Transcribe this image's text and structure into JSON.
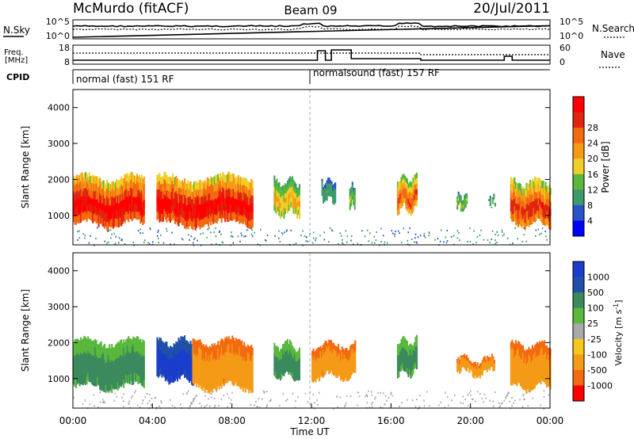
{
  "header": {
    "title": "McMurdo (fitACF)",
    "beam": "Beam 09",
    "date": "20/Jul/2011"
  },
  "colors": {
    "power_scale": [
      "#0000ff",
      "#2a52c9",
      "#3d9a6a",
      "#59b83c",
      "#f0d028",
      "#f59a17",
      "#f36a10",
      "#e02510",
      "#ff0000"
    ],
    "velocity_scale": [
      "#1a3dcc",
      "#2050a8",
      "#3b8a5e",
      "#59b83c",
      "#a8a8a8",
      "#f5c61c",
      "#f59a17",
      "#f36a10",
      "#ff0000"
    ],
    "noise_line": "#000000",
    "background": "#ffffff"
  },
  "chart_data": [
    {
      "type": "line",
      "panel": "noise",
      "left_label": "N.Sky",
      "right_label": "N.Search",
      "left_ticks": [
        "10^5",
        "10^0"
      ],
      "right_ticks": [
        "10^5",
        "10^0"
      ],
      "series": [
        {
          "name": "N.Sky",
          "style": "solid"
        },
        {
          "name": "N.Search",
          "style": "dotted"
        }
      ]
    },
    {
      "type": "line",
      "panel": "frequency",
      "left_label": "Freq. [MHz]",
      "right_label": "Nave",
      "left_ticks": [
        "18",
        "8"
      ],
      "right_ticks": [
        "60",
        "0"
      ],
      "series": [
        {
          "name": "Freq.",
          "style": "solid"
        },
        {
          "name": "Nave",
          "style": "dotted"
        }
      ]
    },
    {
      "type": "table",
      "panel": "cpid",
      "label": "CPID",
      "segments": [
        {
          "start": "00:00",
          "end": "12:00",
          "text": "normal (fast) 151 RF"
        },
        {
          "start": "12:00",
          "end": "00:00",
          "text": "normalsound (fast) 157 RF"
        }
      ]
    },
    {
      "type": "heatmap",
      "panel": "power",
      "ylabel": "Slant Range [km]",
      "ylim": [
        180,
        4500
      ],
      "yticks": [
        "1000",
        "2000",
        "3000",
        "4000"
      ],
      "colorbar_label": "Power [dB]",
      "colorbar_ticks": [
        "4",
        "8",
        "12",
        "16",
        "20",
        "24",
        "28"
      ],
      "echo_regions": [
        {
          "start_hr": 0.0,
          "end_hr": 3.6,
          "low_km": 700,
          "high_km": 2100,
          "peak_dB": 30
        },
        {
          "start_hr": 4.2,
          "end_hr": 9.0,
          "low_km": 700,
          "high_km": 2100,
          "peak_dB": 30
        },
        {
          "start_hr": 10.1,
          "end_hr": 11.4,
          "low_km": 1000,
          "high_km": 2000,
          "peak_dB": 18
        },
        {
          "start_hr": 12.5,
          "end_hr": 13.2,
          "low_km": 1400,
          "high_km": 2000,
          "peak_dB": 10
        },
        {
          "start_hr": 13.9,
          "end_hr": 14.2,
          "low_km": 1200,
          "high_km": 1900,
          "peak_dB": 14
        },
        {
          "start_hr": 16.3,
          "end_hr": 17.3,
          "low_km": 1100,
          "high_km": 2100,
          "peak_dB": 24
        },
        {
          "start_hr": 19.3,
          "end_hr": 19.8,
          "low_km": 1100,
          "high_km": 1600,
          "peak_dB": 14
        },
        {
          "start_hr": 20.9,
          "end_hr": 21.2,
          "low_km": 1200,
          "high_km": 1500,
          "peak_dB": 12
        },
        {
          "start_hr": 22.0,
          "end_hr": 24.0,
          "low_km": 700,
          "high_km": 2000,
          "peak_dB": 26
        }
      ]
    },
    {
      "type": "heatmap",
      "panel": "velocity",
      "ylabel": "Slant Range [km]",
      "xlabel": "Time UT",
      "ylim": [
        180,
        4500
      ],
      "yticks": [
        "1000",
        "2000",
        "3000",
        "4000"
      ],
      "xticks": [
        "00:00",
        "04:00",
        "08:00",
        "12:00",
        "16:00",
        "20:00",
        "00:00"
      ],
      "colorbar_label": "Velocity [m s^-1]",
      "colorbar_ticks": [
        "1000",
        "500",
        "100",
        "25",
        "-25",
        "-100",
        "-500",
        "-1000"
      ],
      "echo_regions": [
        {
          "start_hr": 0.0,
          "end_hr": 3.6,
          "low_km": 700,
          "high_km": 2100,
          "velocity": 300
        },
        {
          "start_hr": 4.2,
          "end_hr": 6.0,
          "low_km": 900,
          "high_km": 2100,
          "velocity": 700
        },
        {
          "start_hr": 6.0,
          "end_hr": 9.0,
          "low_km": 700,
          "high_km": 2100,
          "velocity": -300
        },
        {
          "start_hr": 10.1,
          "end_hr": 11.4,
          "low_km": 1000,
          "high_km": 2000,
          "velocity": 200
        },
        {
          "start_hr": 12.0,
          "end_hr": 14.2,
          "low_km": 1000,
          "high_km": 2000,
          "velocity": -200
        },
        {
          "start_hr": 16.3,
          "end_hr": 17.3,
          "low_km": 1100,
          "high_km": 2100,
          "velocity": 200
        },
        {
          "start_hr": 19.3,
          "end_hr": 21.2,
          "low_km": 1100,
          "high_km": 1600,
          "velocity": -200
        },
        {
          "start_hr": 22.0,
          "end_hr": 24.0,
          "low_km": 700,
          "high_km": 2000,
          "velocity": -300
        }
      ]
    }
  ]
}
